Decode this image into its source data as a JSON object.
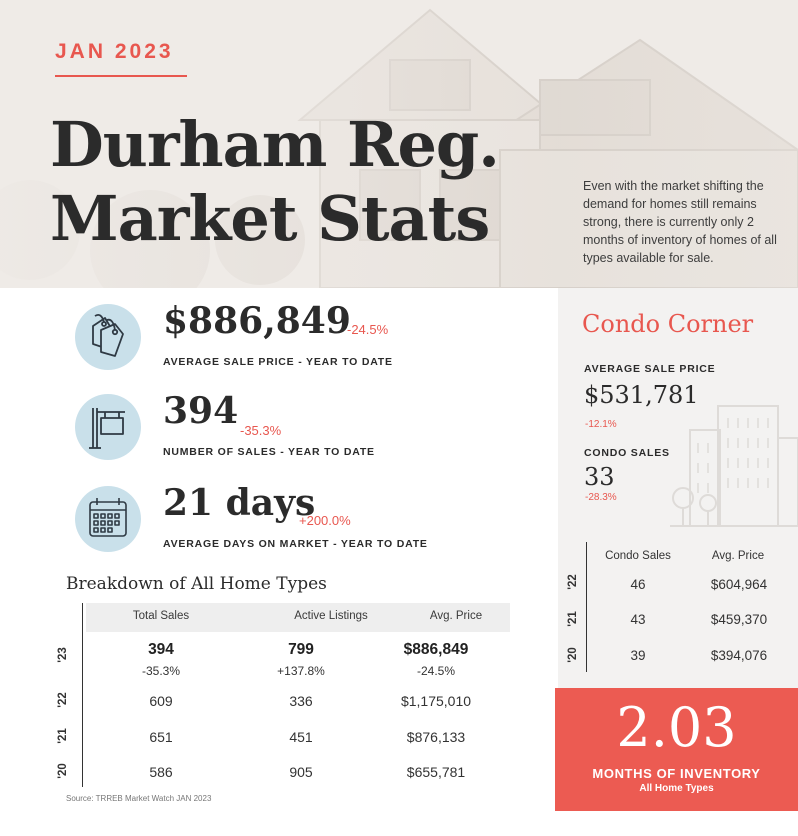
{
  "hero": {
    "eyebrow": "JAN 2023",
    "title_line1": "Durham Reg.",
    "title_line2": "Market Stats",
    "blurb": "Even with the market shifting the demand for homes still remains strong, there is currently only 2 months of inventory of homes of all types available for sale."
  },
  "stats": [
    {
      "icon": "price-tags-icon",
      "value": "$886,849",
      "change": "-24.5%",
      "label": "AVERAGE SALE PRICE - YEAR TO DATE"
    },
    {
      "icon": "sale-sign-icon",
      "value": "394",
      "change": "-35.3%",
      "label": "NUMBER OF SALES - YEAR TO DATE"
    },
    {
      "icon": "calendar-icon",
      "value": "21 days",
      "change": "+200.0%",
      "label": "AVERAGE DAYS ON MARKET - YEAR TO DATE"
    }
  ],
  "breakdown": {
    "title": "Breakdown of All Home Types",
    "headers": [
      "Total Sales",
      "Active Listings",
      "Avg. Price"
    ],
    "rows": [
      {
        "year": "'23",
        "values": [
          "394",
          "799",
          "$886,849"
        ],
        "changes": [
          "-35.3%",
          "+137.8%",
          "-24.5%"
        ]
      },
      {
        "year": "'22",
        "values": [
          "609",
          "336",
          "$1,175,010"
        ]
      },
      {
        "year": "'21",
        "values": [
          "651",
          "451",
          "$876,133"
        ]
      },
      {
        "year": "'20",
        "values": [
          "586",
          "905",
          "$655,781"
        ]
      }
    ],
    "source": "Source: TRREB Market Watch JAN 2023"
  },
  "condo": {
    "title": "Condo Corner",
    "avg_price_label": "AVERAGE SALE PRICE",
    "avg_price_value": "$531,781",
    "avg_price_change": "-12.1%",
    "sales_label": "CONDO SALES",
    "sales_value": "33",
    "sales_change": "-28.3%",
    "headers": [
      "Condo Sales",
      "Avg. Price"
    ],
    "rows": [
      {
        "year": "'22",
        "values": [
          "46",
          "$604,964"
        ]
      },
      {
        "year": "'21",
        "values": [
          "43",
          "$459,370"
        ]
      },
      {
        "year": "'20",
        "values": [
          "39",
          "$394,076"
        ]
      }
    ]
  },
  "inventory": {
    "value": "2.03",
    "label": "MONTHS OF INVENTORY",
    "sublabel": "All Home Types"
  },
  "colors": {
    "accent": "#e8574f",
    "icon_circle": "#c9e0ea",
    "hero_bg": "#efebe7",
    "panel_bg": "#f3f2f1"
  }
}
